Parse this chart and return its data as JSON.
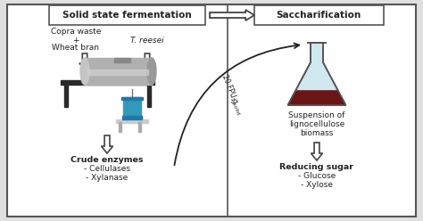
{
  "bg_color": "#e0e0e0",
  "border_color": "#555555",
  "title_left": "Solid state fermentation",
  "title_right": "Saccharification",
  "text_color": "#222222",
  "flask_liquid_color": "#6B1515",
  "flask_glass_color": "#d0e8f0",
  "drum_color": "#b0b0b0",
  "table_color": "#2a2a2a",
  "can_color": "#3399bb",
  "curve_label": "20 FPU g",
  "curve_label_super": "-1",
  "curve_label_sub": " solid"
}
